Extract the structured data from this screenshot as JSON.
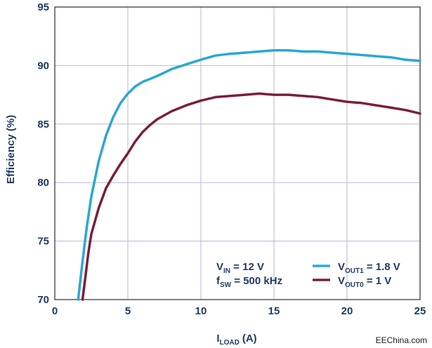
{
  "chart_data": {
    "type": "line",
    "title": "",
    "xlabel": {
      "main": "I",
      "sub": "LOAD",
      "unit": "(A)"
    },
    "ylabel": "Efficiency (%)",
    "xlim": [
      0,
      25
    ],
    "ylim": [
      70,
      95
    ],
    "xticks": [
      0,
      5,
      10,
      15,
      20,
      25
    ],
    "yticks": [
      70,
      75,
      80,
      85,
      90,
      95
    ],
    "grid": true,
    "legend_position": "bottom-right",
    "conditions": [
      {
        "main": "V",
        "sub": "IN",
        "rest": " = 12 V"
      },
      {
        "main": "f",
        "sub": "SW",
        "rest": " = 500 kHz"
      }
    ],
    "series": [
      {
        "name": "1.8 V",
        "label": {
          "main": "V",
          "sub": "OUT1",
          "rest": " = 1.8 V"
        },
        "color": "#2aa8d4",
        "x": [
          1.6,
          1.8,
          2.0,
          2.2,
          2.5,
          3.0,
          3.5,
          4.0,
          4.5,
          5.0,
          5.5,
          6.0,
          6.5,
          7.0,
          8.0,
          9.0,
          10.0,
          11.0,
          12.0,
          13.0,
          14.0,
          15.0,
          16.0,
          17.0,
          18.0,
          19.0,
          20.0,
          21.0,
          22.0,
          23.0,
          24.0,
          25.0
        ],
        "y": [
          70.0,
          72.2,
          74.3,
          76.3,
          78.8,
          81.8,
          84.0,
          85.6,
          86.8,
          87.6,
          88.2,
          88.6,
          88.85,
          89.1,
          89.7,
          90.1,
          90.5,
          90.85,
          91.0,
          91.1,
          91.2,
          91.3,
          91.3,
          91.2,
          91.2,
          91.1,
          91.0,
          90.9,
          90.8,
          90.7,
          90.5,
          90.4
        ]
      },
      {
        "name": "1 V",
        "label": {
          "main": "V",
          "sub": "OUT0",
          "rest": " = 1 V"
        },
        "color": "#7b1f3a",
        "x": [
          1.9,
          2.1,
          2.3,
          2.5,
          3.0,
          3.5,
          4.0,
          4.5,
          5.0,
          5.5,
          6.0,
          6.5,
          7.0,
          8.0,
          9.0,
          10.0,
          11.0,
          12.0,
          13.0,
          14.0,
          15.0,
          16.0,
          17.0,
          18.0,
          19.0,
          20.0,
          21.0,
          22.0,
          23.0,
          24.0,
          25.0
        ],
        "y": [
          70.0,
          72.0,
          74.0,
          75.6,
          77.8,
          79.5,
          80.6,
          81.6,
          82.5,
          83.5,
          84.3,
          84.9,
          85.4,
          86.1,
          86.6,
          87.0,
          87.3,
          87.4,
          87.5,
          87.6,
          87.5,
          87.5,
          87.4,
          87.3,
          87.1,
          86.9,
          86.8,
          86.6,
          86.4,
          86.2,
          85.9
        ]
      }
    ]
  },
  "watermark": "EEChina.com"
}
